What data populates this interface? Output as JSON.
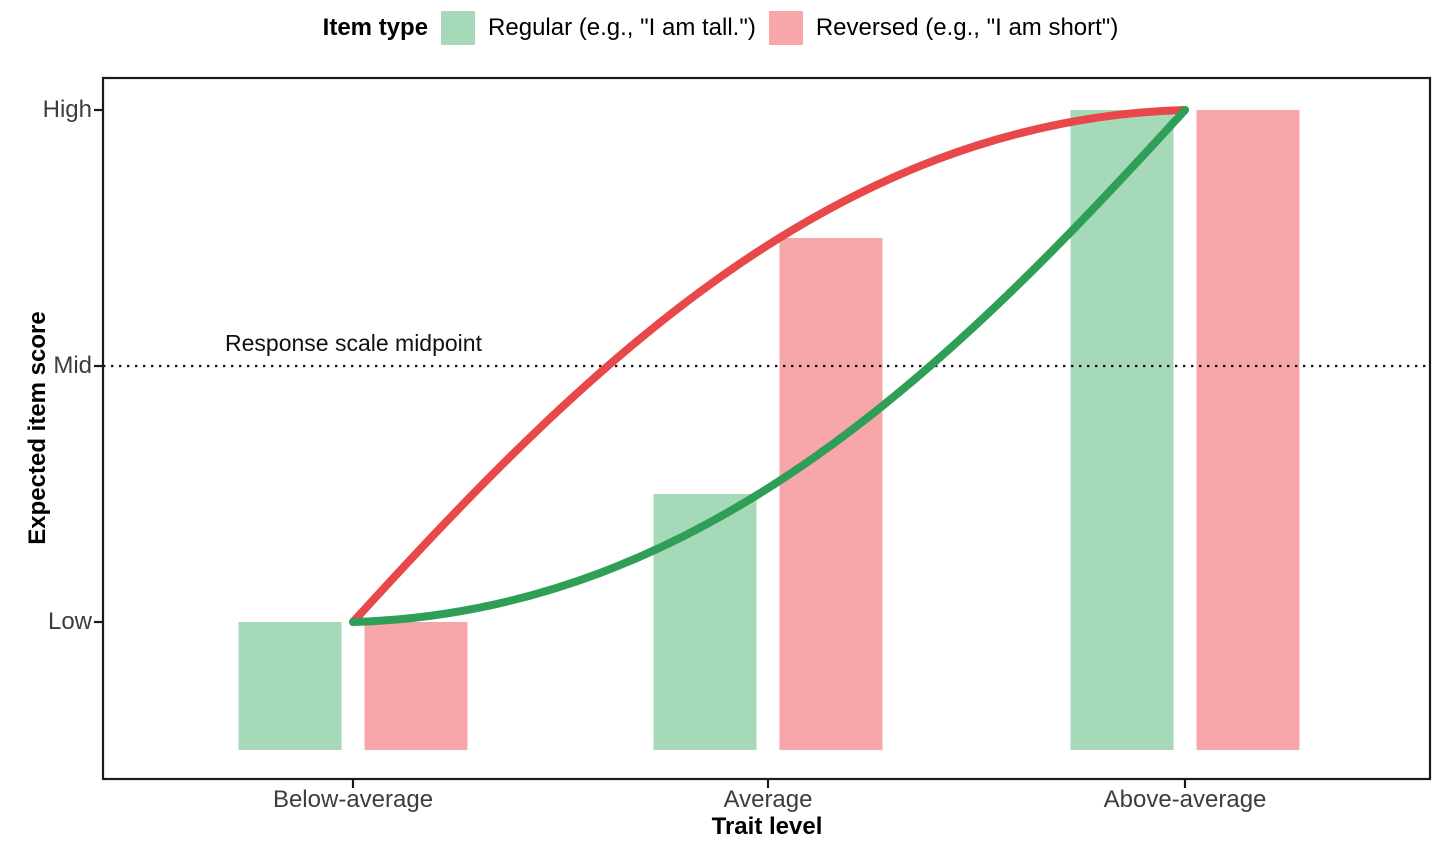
{
  "figure": {
    "background": "#ffffff",
    "panel_border_color": "#1a1a1a",
    "tick_label_color": "#3d3d3d"
  },
  "legend": {
    "title": "Item type",
    "items": [
      {
        "label": "Regular (e.g., \"I am tall.\")",
        "color": "#a6d9b7"
      },
      {
        "label": "Reversed (e.g., \"I am short\")",
        "color": "#f7a6a9"
      }
    ]
  },
  "chart_data": {
    "type": "bar",
    "title": "",
    "xlabel": "Trait level",
    "ylabel": "Expected item score",
    "x_categories": [
      "Below-average",
      "Average",
      "Above-average"
    ],
    "y_tick_labels": [
      "Low",
      "Mid",
      "High"
    ],
    "y_value_scale": {
      "Low": 0,
      "Mid": 0.5,
      "High": 1
    },
    "ylim": [
      -0.25,
      1.0
    ],
    "grid": "off",
    "legend_position": "top",
    "series": [
      {
        "name": "Regular (e.g., \"I am tall.\")",
        "kind": "bar",
        "color": "#a6d9b7",
        "values": [
          0,
          0.25,
          1.0
        ]
      },
      {
        "name": "Reversed (e.g., \"I am short\")",
        "kind": "bar",
        "color": "#f7a6a9",
        "values": [
          0,
          0.75,
          1.0
        ]
      },
      {
        "name": "Regular item curve",
        "kind": "line",
        "color": "#2f9e57",
        "width": 8,
        "curve_bezier": {
          "start": [
            1,
            0
          ],
          "c1": [
            1.85,
            0.02
          ],
          "c2": [
            2.45,
            0.51
          ],
          "end": [
            3,
            1
          ]
        }
      },
      {
        "name": "Reversed item curve",
        "kind": "line",
        "color": "#e8484a",
        "width": 8,
        "curve_bezier": {
          "start": [
            1,
            0
          ],
          "c1": [
            1.55,
            0.49
          ],
          "c2": [
            2.15,
            0.98
          ],
          "end": [
            3,
            1
          ]
        }
      }
    ],
    "reference_line": {
      "y": 0.5,
      "style": "dotted",
      "color": "#111111"
    },
    "annotations": [
      {
        "text": "Response scale midpoint",
        "y": 0.5,
        "position": "above-line-left"
      }
    ]
  }
}
